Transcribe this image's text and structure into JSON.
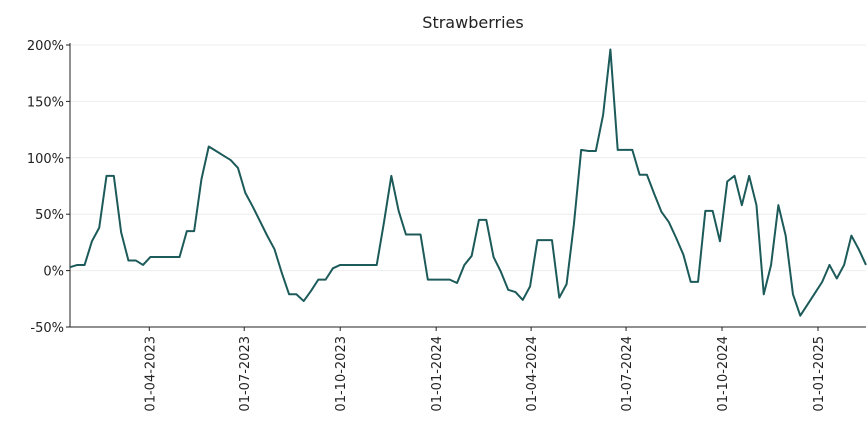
{
  "chart_data": {
    "type": "line",
    "title": "Strawberries",
    "x": [
      "2023-01-15",
      "2023-01-22",
      "2023-01-29",
      "2023-02-05",
      "2023-02-12",
      "2023-02-19",
      "2023-02-26",
      "2023-03-05",
      "2023-03-12",
      "2023-03-19",
      "2023-03-26",
      "2023-04-02",
      "2023-04-09",
      "2023-04-16",
      "2023-04-23",
      "2023-04-30",
      "2023-05-07",
      "2023-05-14",
      "2023-05-21",
      "2023-05-28",
      "2023-06-04",
      "2023-06-11",
      "2023-06-18",
      "2023-06-25",
      "2023-07-02",
      "2023-07-09",
      "2023-07-16",
      "2023-07-23",
      "2023-07-30",
      "2023-08-06",
      "2023-08-13",
      "2023-08-20",
      "2023-08-27",
      "2023-09-03",
      "2023-09-10",
      "2023-09-17",
      "2023-09-24",
      "2023-10-01",
      "2023-10-08",
      "2023-10-15",
      "2023-10-22",
      "2023-10-29",
      "2023-11-05",
      "2023-11-12",
      "2023-11-19",
      "2023-11-26",
      "2023-12-03",
      "2023-12-10",
      "2023-12-17",
      "2023-12-24",
      "2023-12-31",
      "2024-01-07",
      "2024-01-14",
      "2024-01-21",
      "2024-01-28",
      "2024-02-04",
      "2024-02-11",
      "2024-02-18",
      "2024-02-25",
      "2024-03-03",
      "2024-03-10",
      "2024-03-17",
      "2024-03-24",
      "2024-03-31",
      "2024-04-07",
      "2024-04-14",
      "2024-04-21",
      "2024-04-28",
      "2024-05-05",
      "2024-05-12",
      "2024-05-19",
      "2024-05-26",
      "2024-06-02",
      "2024-06-09",
      "2024-06-16",
      "2024-06-23",
      "2024-06-30",
      "2024-07-07",
      "2024-07-14",
      "2024-07-21",
      "2024-07-28",
      "2024-08-04",
      "2024-08-11",
      "2024-08-18",
      "2024-08-25",
      "2024-09-01",
      "2024-09-08",
      "2024-09-15",
      "2024-09-22",
      "2024-09-29",
      "2024-10-06",
      "2024-10-13",
      "2024-10-20",
      "2024-10-27",
      "2024-11-03",
      "2024-11-10",
      "2024-11-17",
      "2024-11-24",
      "2024-12-01",
      "2024-12-08",
      "2024-12-15",
      "2024-12-22",
      "2024-12-29",
      "2025-01-05",
      "2025-01-12",
      "2025-01-19",
      "2025-01-26",
      "2025-02-02",
      "2025-02-09",
      "2025-02-16"
    ],
    "series": [
      {
        "color": "#1d5a5a",
        "values": [
          3,
          5,
          5,
          26,
          38,
          84,
          84,
          34,
          9,
          9,
          5,
          12,
          12,
          12,
          12,
          12,
          35,
          35,
          81,
          110,
          106,
          102,
          98,
          91,
          69,
          57,
          44,
          31,
          19,
          -2,
          -21,
          -21,
          -27,
          -18,
          -8,
          -8,
          2,
          5,
          5,
          5,
          5,
          5,
          5,
          43,
          84,
          53,
          32,
          32,
          32,
          -8,
          -8,
          -8,
          -8,
          -11,
          5,
          13,
          45,
          45,
          12,
          -1,
          -17,
          -19,
          -26,
          -14,
          27,
          27,
          27,
          -24,
          -12,
          41,
          107,
          106,
          106,
          138,
          196,
          107,
          107,
          107,
          85,
          85,
          68,
          52,
          43,
          29,
          14,
          -10,
          -10,
          53,
          53,
          26,
          79,
          84,
          58,
          84,
          58,
          -21,
          5,
          58,
          31,
          -21,
          -40,
          -30,
          -20,
          -10,
          5,
          -7,
          5,
          31,
          19,
          5
        ]
      }
    ],
    "xlim": [
      "2023-01-15",
      "2025-02-16"
    ],
    "xticks": [
      {
        "value": "2023-04-01",
        "label": "01-04-2023"
      },
      {
        "value": "2023-07-01",
        "label": "01-07-2023"
      },
      {
        "value": "2023-10-01",
        "label": "01-10-2023"
      },
      {
        "value": "2024-01-01",
        "label": "01-01-2024"
      },
      {
        "value": "2024-04-01",
        "label": "01-04-2024"
      },
      {
        "value": "2024-07-01",
        "label": "01-07-2024"
      },
      {
        "value": "2024-10-01",
        "label": "01-10-2024"
      },
      {
        "value": "2025-01-01",
        "label": "01-01-2025"
      }
    ],
    "ylim": [
      -50,
      200
    ],
    "yticks": [
      {
        "value": -50,
        "label": "-50%"
      },
      {
        "value": 0,
        "label": "0%"
      },
      {
        "value": 50,
        "label": "50%"
      },
      {
        "value": 100,
        "label": "100%"
      },
      {
        "value": 150,
        "label": "150%"
      },
      {
        "value": 200,
        "label": "200%"
      }
    ],
    "grid": true
  }
}
